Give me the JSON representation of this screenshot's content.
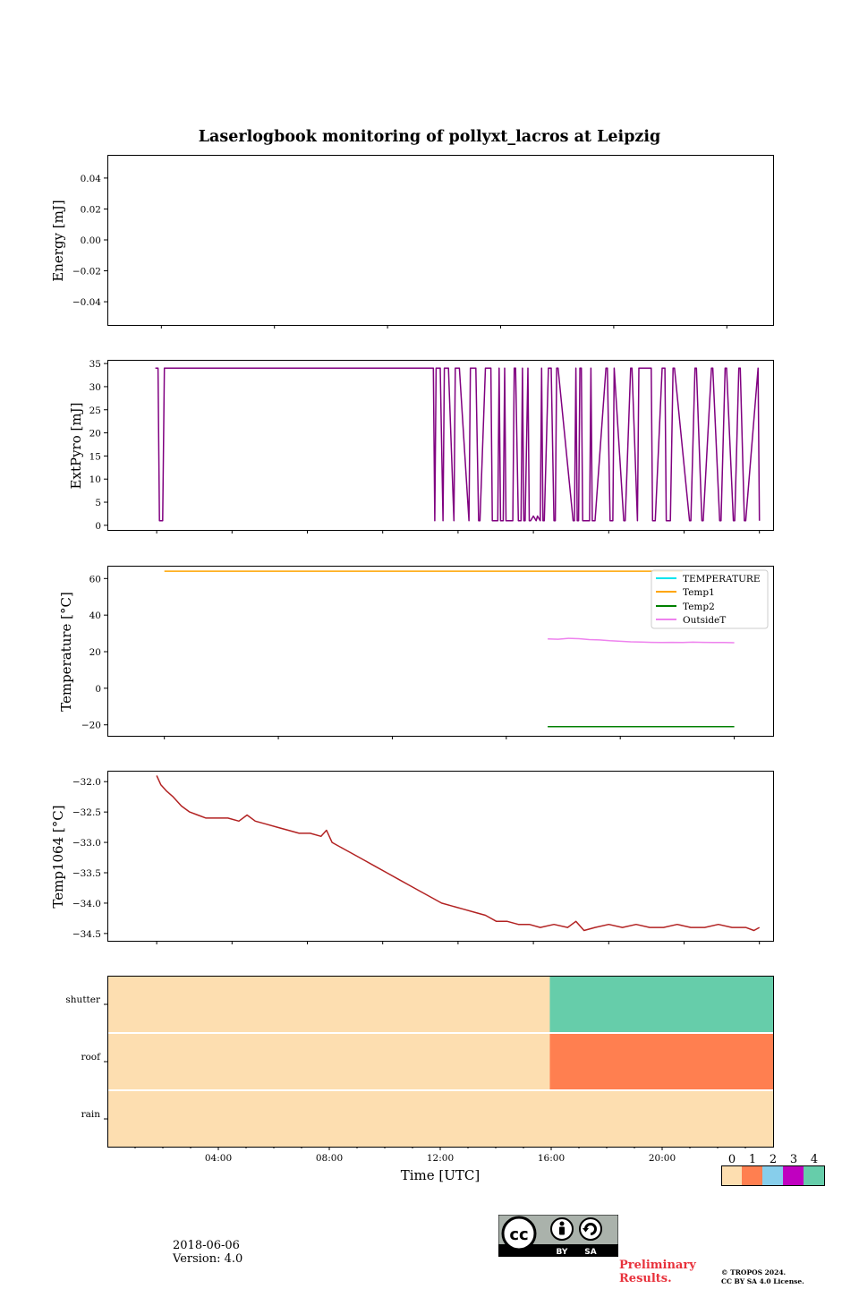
{
  "figure": {
    "title": "Laserlogbook monitoring of pollyxt_lacros at Leipzig",
    "date": "2018-06-06",
    "version": "Version: 4.0",
    "preliminary": [
      "Preliminary",
      "Results."
    ],
    "copyright": [
      "© TROPOS 2024.",
      "CC BY SA 4.0 License."
    ],
    "license_badge": [
      "BY",
      "SA"
    ]
  },
  "colors": {
    "extpyro": "#800080",
    "temperature": "#00e5ee",
    "temp1": "#ffa500",
    "temp2": "#008000",
    "outside": "#ee82ee",
    "temp1064": "#b22222",
    "status": [
      "#fddeb0",
      "#ff7f50",
      "#87ceeb",
      "#c000c0",
      "#66cdaa"
    ],
    "preliminary": "#e8323c"
  },
  "chart_data": [
    {
      "id": "energy",
      "type": "line",
      "ylabel": "Energy [mJ]",
      "ylim": [
        -0.055,
        0.055
      ],
      "yticks": [
        0.04,
        0.02,
        0.0,
        -0.02,
        -0.04
      ],
      "ytick_labels": [
        "0.04",
        "0.02",
        "0.00",
        "−0.02",
        "−0.04"
      ],
      "series": []
    },
    {
      "id": "extpyro",
      "type": "line",
      "ylabel": "ExtPyro [mJ]",
      "ylim": [
        -1.0,
        35.8
      ],
      "yticks": [
        0,
        5,
        10,
        15,
        20,
        25,
        30,
        35
      ],
      "ytick_labels": [
        "0",
        "5",
        "10",
        "15",
        "20",
        "25",
        "30",
        "35"
      ],
      "series": [
        {
          "color_key": "extpyro",
          "x": [
            0.95,
            1.05,
            1.1,
            1.22,
            1.28,
            1.34,
            10.5,
            10.6,
            10.65,
            10.75,
            11.1,
            11.15,
            11.2,
            11.35,
            11.45,
            11.5,
            11.65,
            11.85,
            11.9,
            12.05,
            12.4,
            12.45,
            12.65,
            12.75,
            12.8,
            13.0,
            13.2,
            13.25,
            13.45,
            13.5,
            13.55,
            13.6,
            13.65,
            13.7,
            13.75,
            14.0,
            14.05,
            14.1,
            14.2,
            14.3,
            14.35,
            14.4,
            14.45,
            14.55,
            14.6,
            14.65,
            14.75,
            14.85,
            14.9,
            15.0,
            15.05,
            15.1,
            15.15,
            15.3,
            15.4,
            15.5,
            15.55,
            15.6,
            15.65,
            16.2,
            16.25,
            16.3,
            16.35,
            16.4,
            16.45,
            16.5,
            16.55,
            16.8,
            16.85,
            16.9,
            17.0,
            17.4,
            17.45,
            17.55,
            17.65,
            17.7,
            18.05,
            18.1,
            18.3,
            18.35,
            18.55,
            18.6,
            19.05,
            19.1,
            19.2,
            19.45,
            19.55,
            19.6,
            19.75,
            19.85,
            19.9,
            20.45,
            20.5,
            20.65,
            20.7,
            20.9,
            20.95,
            21.25,
            21.3,
            21.55,
            21.6,
            21.75,
            21.8,
            22.05,
            22.1,
            22.25,
            22.3,
            22.45,
            22.5,
            22.95,
            23.0
          ],
          "y": [
            34,
            34,
            1,
            1,
            34,
            34,
            34,
            34,
            34,
            34,
            34,
            1,
            34,
            34,
            1,
            34,
            34,
            1,
            34,
            34,
            1,
            34,
            34,
            1,
            1,
            34,
            34,
            1,
            1,
            34,
            1,
            1,
            1,
            34,
            1,
            1,
            34,
            34,
            1,
            1,
            34,
            1,
            1,
            34,
            1,
            1,
            2,
            1,
            2,
            1,
            34,
            1,
            1,
            34,
            34,
            1,
            1,
            34,
            34,
            1,
            1,
            34,
            1,
            1,
            34,
            34,
            1,
            1,
            34,
            1,
            1,
            34,
            34,
            1,
            1,
            34,
            1,
            1,
            34,
            34,
            1,
            34,
            34,
            1,
            1,
            34,
            34,
            1,
            1,
            34,
            34,
            1,
            1,
            34,
            34,
            1,
            1,
            34,
            34,
            1,
            1,
            34,
            34,
            1,
            1,
            34,
            34,
            1,
            1,
            34,
            1
          ]
        }
      ]
    },
    {
      "id": "temperature",
      "type": "line",
      "ylabel": "Temperature [°C]",
      "ylim": [
        -26,
        67
      ],
      "yticks": [
        60,
        40,
        20,
        0,
        -20
      ],
      "ytick_labels": [
        "60",
        "40",
        "20",
        "0",
        "−20"
      ],
      "legend_position": "upper-right",
      "series": [
        {
          "name": "TEMPERATURE",
          "color_key": "temperature",
          "x": [],
          "y": []
        },
        {
          "name": "Temp1",
          "color_key": "temp1",
          "x": [
            1.0,
            21.0
          ],
          "y": [
            64,
            64
          ]
        },
        {
          "name": "Temp2",
          "color_key": "temp2",
          "x": [
            15.8,
            23.0
          ],
          "y": [
            -21,
            -21
          ]
        },
        {
          "name": "OutsideT",
          "color_key": "outside",
          "x": [
            15.8,
            16.2,
            16.6,
            17.0,
            17.4,
            17.8,
            18.2,
            18.6,
            19.0,
            19.4,
            19.8,
            20.2,
            20.6,
            21.0,
            21.4,
            21.8,
            22.2,
            22.6,
            23.0
          ],
          "y": [
            27,
            26.8,
            27.3,
            27.1,
            26.6,
            26.4,
            26.0,
            25.7,
            25.4,
            25.3,
            25.1,
            25.0,
            25.1,
            25.0,
            25.2,
            25.1,
            25.0,
            25.0,
            24.9
          ]
        }
      ]
    },
    {
      "id": "temp1064",
      "type": "line",
      "ylabel": "Temp1064 [°C]",
      "ylim": [
        -34.62,
        -31.82
      ],
      "yticks": [
        -32.0,
        -32.5,
        -33.0,
        -33.5,
        -34.0,
        -34.5
      ],
      "ytick_labels": [
        "−32.0",
        "−32.5",
        "−33.0",
        "−33.5",
        "−34.0",
        "−34.5"
      ],
      "series": [
        {
          "color_key": "temp1064",
          "x": [
            1.0,
            1.15,
            1.35,
            1.6,
            1.9,
            2.2,
            2.5,
            2.8,
            3.2,
            3.6,
            4.0,
            4.3,
            4.6,
            5.0,
            5.4,
            5.8,
            6.2,
            6.6,
            7.0,
            7.2,
            7.4,
            7.8,
            8.2,
            8.6,
            9.0,
            9.4,
            9.8,
            10.2,
            10.6,
            11.0,
            11.4,
            11.8,
            12.2,
            12.6,
            13.0,
            13.4,
            13.8,
            14.2,
            14.6,
            15.0,
            15.5,
            16.0,
            16.3,
            16.6,
            17.0,
            17.5,
            18.0,
            18.5,
            19.0,
            19.5,
            20.0,
            20.5,
            21.0,
            21.5,
            22.0,
            22.5,
            22.8,
            23.0
          ],
          "y": [
            -31.9,
            -32.05,
            -32.15,
            -32.25,
            -32.4,
            -32.5,
            -32.55,
            -32.6,
            -32.6,
            -32.6,
            -32.65,
            -32.55,
            -32.65,
            -32.7,
            -32.75,
            -32.8,
            -32.85,
            -32.85,
            -32.9,
            -32.8,
            -33.0,
            -33.1,
            -33.2,
            -33.3,
            -33.4,
            -33.5,
            -33.6,
            -33.7,
            -33.8,
            -33.9,
            -34.0,
            -34.05,
            -34.1,
            -34.15,
            -34.2,
            -34.3,
            -34.3,
            -34.35,
            -34.35,
            -34.4,
            -34.35,
            -34.4,
            -34.3,
            -34.45,
            -34.4,
            -34.35,
            -34.4,
            -34.35,
            -34.4,
            -34.4,
            -34.35,
            -34.4,
            -34.4,
            -34.35,
            -34.4,
            -34.4,
            -34.45,
            -34.4
          ]
        }
      ]
    },
    {
      "id": "status",
      "type": "heatmap",
      "rows": [
        "shutter",
        "roof",
        "rain"
      ],
      "segments": [
        [
          {
            "from": 0,
            "to": 15.95,
            "value": 0
          },
          {
            "from": 15.95,
            "to": 24,
            "value": 4
          }
        ],
        [
          {
            "from": 0,
            "to": 15.95,
            "value": 0
          },
          {
            "from": 15.95,
            "to": 24,
            "value": 1
          }
        ],
        [
          {
            "from": 0,
            "to": 24,
            "value": 0
          }
        ]
      ],
      "xlabel": "Time [UTC]",
      "xticks": [
        4,
        8,
        12,
        16,
        20
      ],
      "xtick_labels": [
        "04:00",
        "08:00",
        "12:00",
        "16:00",
        "20:00"
      ],
      "colorbar_ticks": [
        "0",
        "1",
        "2",
        "3",
        "4"
      ]
    }
  ]
}
